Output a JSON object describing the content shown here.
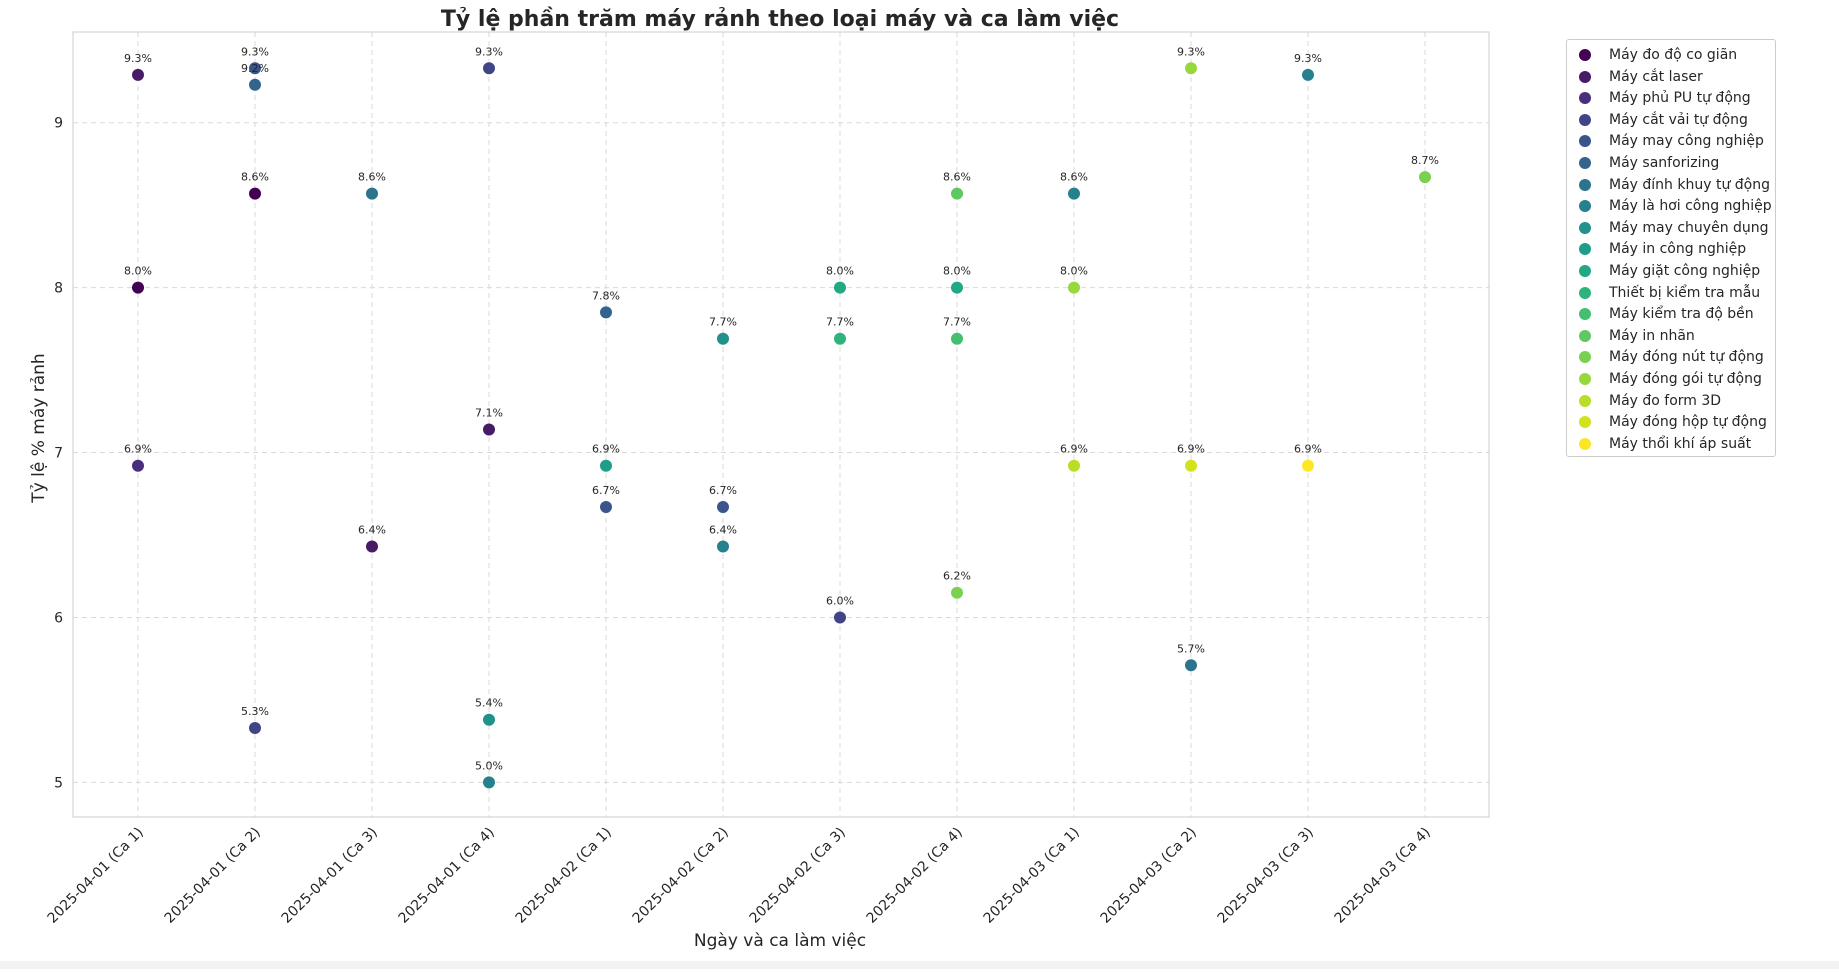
{
  "chart_data": {
    "type": "scatter",
    "title": "Tỷ lệ phần trăm máy rảnh theo loại máy và ca làm việc",
    "xlabel": "Ngày và ca làm việc",
    "ylabel": "Tỷ lệ % máy rảnh",
    "categories": [
      "2025-04-01 (Ca 1)",
      "2025-04-01 (Ca 2)",
      "2025-04-01 (Ca 3)",
      "2025-04-01 (Ca 4)",
      "2025-04-02 (Ca 1)",
      "2025-04-02 (Ca 2)",
      "2025-04-02 (Ca 3)",
      "2025-04-02 (Ca 4)",
      "2025-04-03 (Ca 1)",
      "2025-04-03 (Ca 2)",
      "2025-04-03 (Ca 3)",
      "2025-04-03 (Ca 4)"
    ],
    "ylim": [
      4.79,
      9.55
    ],
    "yticks": [
      5,
      6,
      7,
      8,
      9
    ],
    "grid": true,
    "legend_position": "outside-right",
    "series": [
      {
        "name": "Máy đo độ co giãn",
        "color": "#440154",
        "points": [
          {
            "x": "2025-04-01 (Ca 1)",
            "y": 8.0
          },
          {
            "x": "2025-04-01 (Ca 2)",
            "y": 8.57
          }
        ]
      },
      {
        "name": "Máy cắt laser",
        "color": "#471b65",
        "points": [
          {
            "x": "2025-04-01 (Ca 1)",
            "y": 9.29
          },
          {
            "x": "2025-04-01 (Ca 3)",
            "y": 6.43
          },
          {
            "x": "2025-04-01 (Ca 4)",
            "y": 7.14
          }
        ]
      },
      {
        "name": "Máy phủ PU tự động",
        "color": "#472f7d",
        "points": [
          {
            "x": "2025-04-01 (Ca 1)",
            "y": 6.92
          }
        ]
      },
      {
        "name": "Máy cắt vải tự động",
        "color": "#414487",
        "points": [
          {
            "x": "2025-04-01 (Ca 2)",
            "y": 5.33
          },
          {
            "x": "2025-04-01 (Ca 4)",
            "y": 9.33
          },
          {
            "x": "2025-04-02 (Ca 3)",
            "y": 6.0
          }
        ]
      },
      {
        "name": "Máy may công nghiệp",
        "color": "#3a548c",
        "points": [
          {
            "x": "2025-04-01 (Ca 2)",
            "y": 9.33
          },
          {
            "x": "2025-04-02 (Ca 1)",
            "y": 6.67
          },
          {
            "x": "2025-04-02 (Ca 2)",
            "y": 6.67
          }
        ]
      },
      {
        "name": "Máy sanforizing",
        "color": "#32648e",
        "points": [
          {
            "x": "2025-04-01 (Ca 2)",
            "y": 9.23
          },
          {
            "x": "2025-04-02 (Ca 1)",
            "y": 7.85
          }
        ]
      },
      {
        "name": "Máy đính khuy tự động",
        "color": "#2c738e",
        "points": [
          {
            "x": "2025-04-01 (Ca 3)",
            "y": 8.57
          },
          {
            "x": "2025-04-03 (Ca 2)",
            "y": 5.71
          }
        ]
      },
      {
        "name": "Máy là hơi công nghiệp",
        "color": "#26818e",
        "points": [
          {
            "x": "2025-04-01 (Ca 4)",
            "y": 5.0
          },
          {
            "x": "2025-04-02 (Ca 2)",
            "y": 6.43
          },
          {
            "x": "2025-04-03 (Ca 1)",
            "y": 8.57
          },
          {
            "x": "2025-04-03 (Ca 3)",
            "y": 9.29
          }
        ]
      },
      {
        "name": "Máy may chuyên dụng",
        "color": "#21918c",
        "points": [
          {
            "x": "2025-04-01 (Ca 4)",
            "y": 5.38
          },
          {
            "x": "2025-04-02 (Ca 2)",
            "y": 7.69
          }
        ]
      },
      {
        "name": "Máy in công nghiệp",
        "color": "#1e9d89",
        "points": [
          {
            "x": "2025-04-02 (Ca 1)",
            "y": 6.92
          }
        ]
      },
      {
        "name": "Máy giặt công nghiệp",
        "color": "#22a884",
        "points": [
          {
            "x": "2025-04-02 (Ca 3)",
            "y": 8.0
          },
          {
            "x": "2025-04-02 (Ca 4)",
            "y": 8.0
          }
        ]
      },
      {
        "name": "Thiết bị kiểm tra mẫu",
        "color": "#2eb37c",
        "points": [
          {
            "x": "2025-04-02 (Ca 3)",
            "y": 7.69
          }
        ]
      },
      {
        "name": "Máy kiểm tra độ bền",
        "color": "#44bf70",
        "points": [
          {
            "x": "2025-04-02 (Ca 4)",
            "y": 7.69
          }
        ]
      },
      {
        "name": "Máy in nhãn",
        "color": "#5ec962",
        "points": [
          {
            "x": "2025-04-02 (Ca 4)",
            "y": 8.57
          }
        ]
      },
      {
        "name": "Máy đóng nút tự động",
        "color": "#7ad151",
        "points": [
          {
            "x": "2025-04-02 (Ca 4)",
            "y": 6.15
          },
          {
            "x": "2025-04-03 (Ca 4)",
            "y": 8.67
          }
        ]
      },
      {
        "name": "Máy đóng gói tự động",
        "color": "#98d83e",
        "points": [
          {
            "x": "2025-04-03 (Ca 1)",
            "y": 8.0
          },
          {
            "x": "2025-04-03 (Ca 2)",
            "y": 9.33
          }
        ]
      },
      {
        "name": "Máy đo form 3D",
        "color": "#bade28",
        "points": [
          {
            "x": "2025-04-03 (Ca 1)",
            "y": 6.92
          }
        ]
      },
      {
        "name": "Máy đóng hộp tự động",
        "color": "#d2e21b",
        "points": [
          {
            "x": "2025-04-03 (Ca 2)",
            "y": 6.92
          }
        ]
      },
      {
        "name": "Máy thổi khí áp suất",
        "color": "#fde725",
        "points": [
          {
            "x": "2025-04-03 (Ca 3)",
            "y": 6.92
          }
        ]
      }
    ]
  }
}
